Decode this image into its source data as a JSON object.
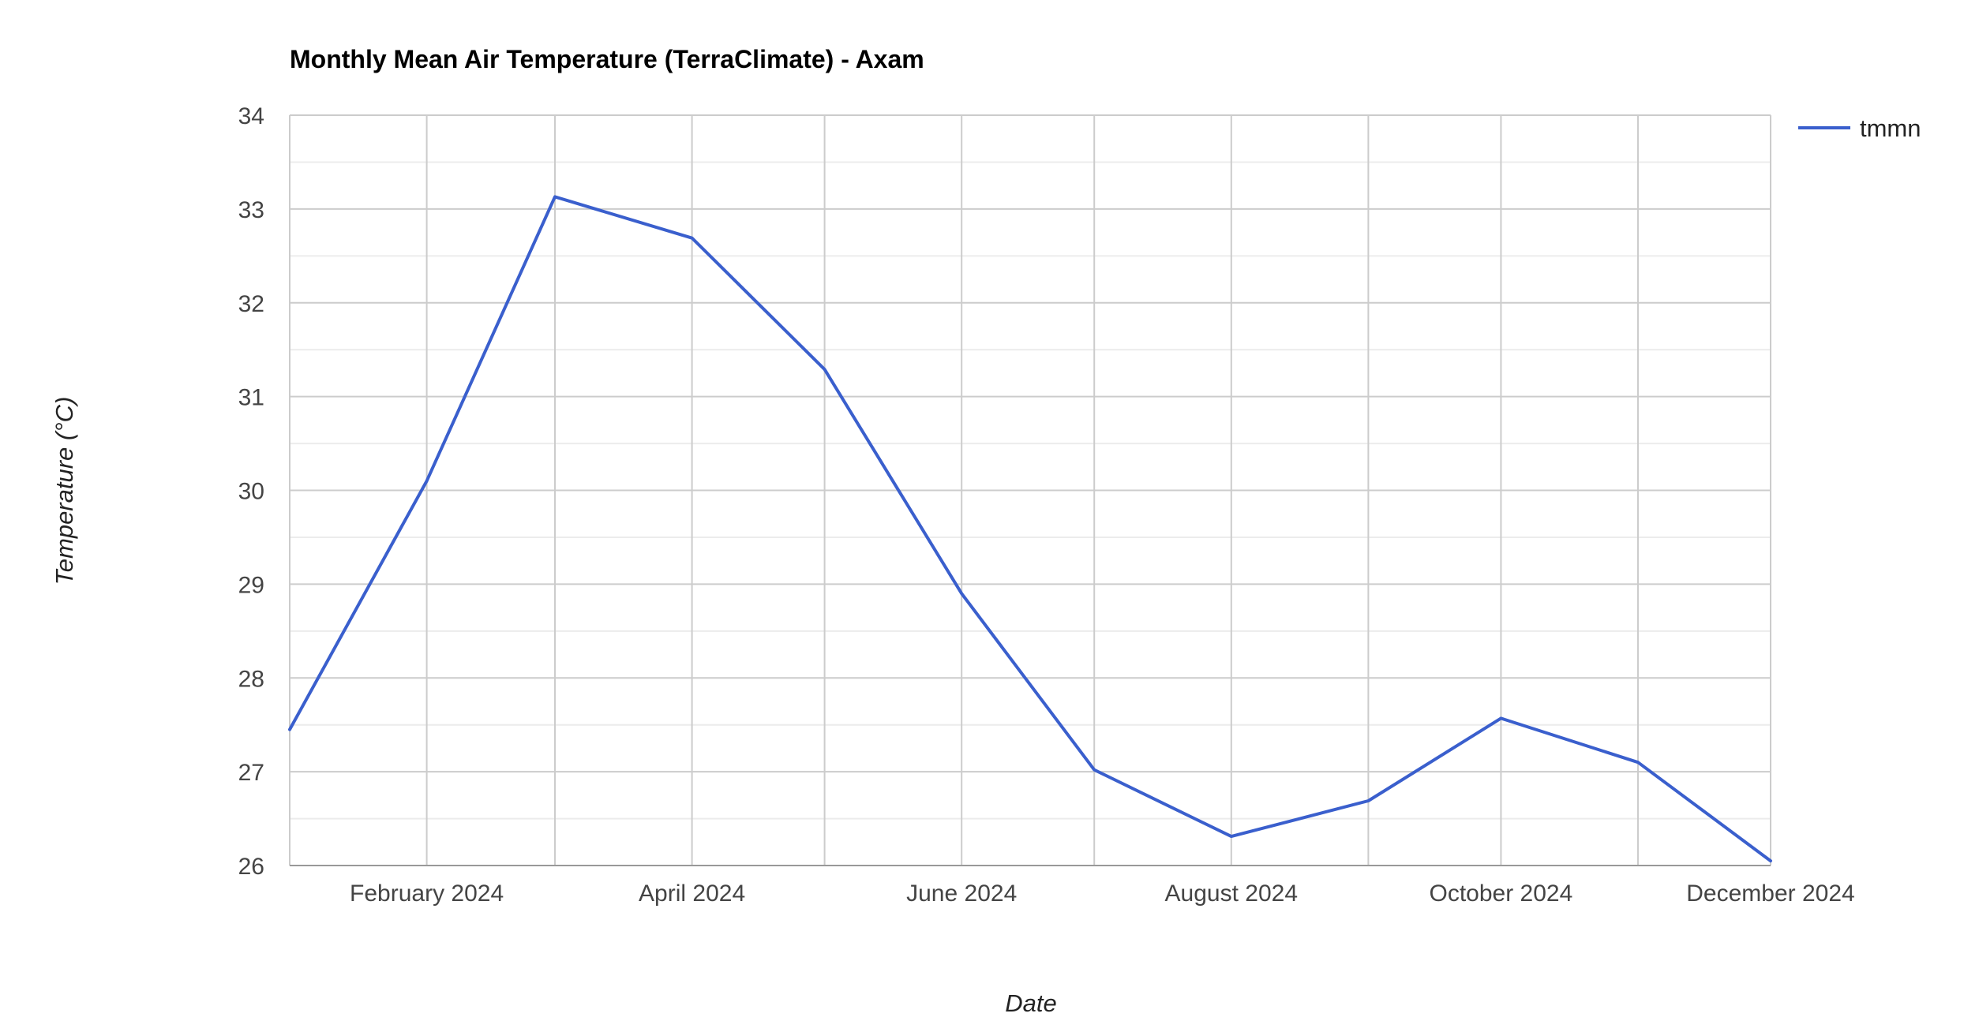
{
  "chart_data": {
    "type": "line",
    "title": "Monthly Mean Air Temperature (TerraClimate) - Axam",
    "xlabel": "Date",
    "ylabel": "Temperature (°C)",
    "x": [
      "2024-01-01",
      "2024-02-01",
      "2024-03-01",
      "2024-04-01",
      "2024-05-01",
      "2024-06-01",
      "2024-07-01",
      "2024-08-01",
      "2024-09-01",
      "2024-10-01",
      "2024-11-01",
      "2024-12-01"
    ],
    "x_ticks": [
      "2024-02-01",
      "2024-04-01",
      "2024-06-01",
      "2024-08-01",
      "2024-10-01",
      "2024-12-01"
    ],
    "x_tick_labels": [
      "February 2024",
      "April 2024",
      "June 2024",
      "August 2024",
      "October 2024",
      "December 2024"
    ],
    "ylim": [
      26,
      34
    ],
    "y_ticks": [
      26,
      27,
      28,
      29,
      30,
      31,
      32,
      33,
      34
    ],
    "y_tick_labels": [
      "26",
      "27",
      "28",
      "29",
      "30",
      "31",
      "32",
      "33",
      "34"
    ],
    "grid": true,
    "legend_position": "top-right",
    "series": [
      {
        "name": "tmmn",
        "color": "#3a5fcd",
        "values": [
          27.45,
          30.1,
          33.13,
          32.69,
          31.29,
          28.9,
          27.02,
          26.31,
          26.69,
          27.57,
          27.1,
          26.05
        ]
      }
    ]
  }
}
